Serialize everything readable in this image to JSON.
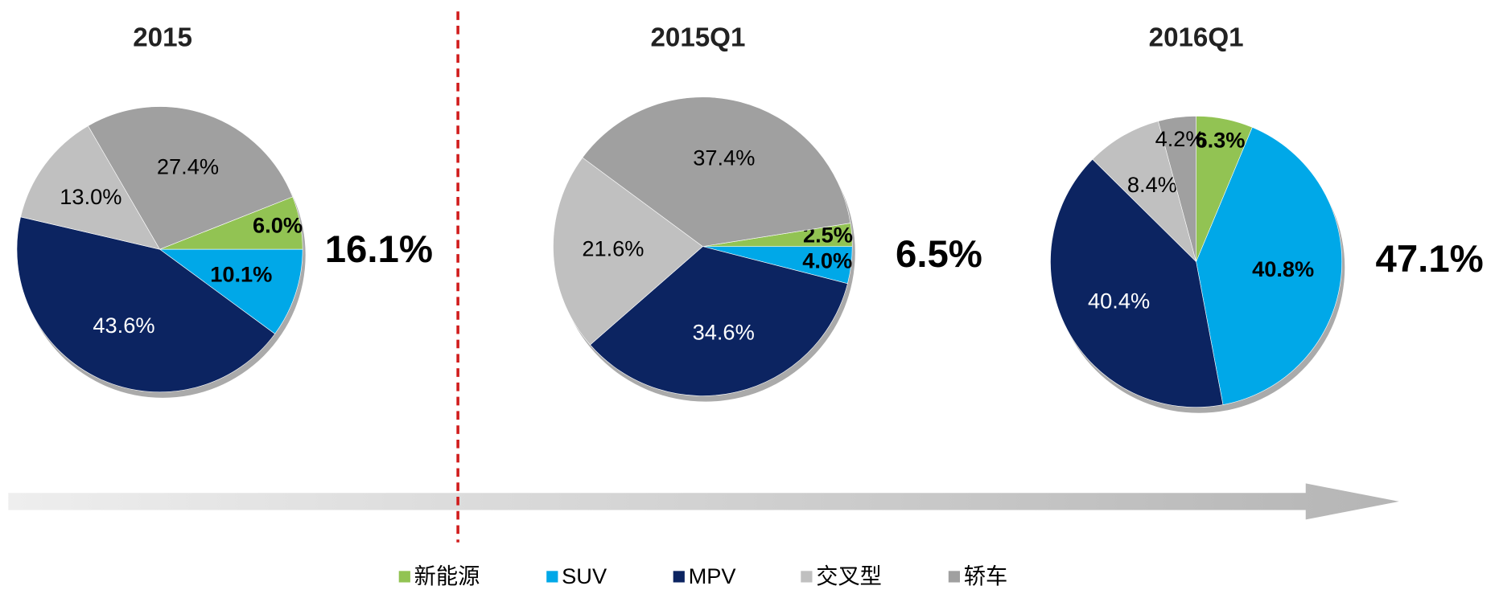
{
  "chart_data": [
    {
      "type": "pie",
      "title": "2015",
      "annotation": "16.1%",
      "categories": [
        "新能源",
        "SUV",
        "MPV",
        "交叉型",
        "轿车"
      ],
      "values": [
        6.0,
        10.1,
        43.6,
        13.0,
        27.4
      ],
      "value_labels": [
        "6.0%",
        "10.1%",
        "43.6%",
        "13.0%",
        "27.4%"
      ],
      "colors": [
        "#92c353",
        "#00a8e8",
        "#0c2461",
        "#c0c0c0",
        "#a0a0a0"
      ]
    },
    {
      "type": "pie",
      "title": "2015Q1",
      "annotation": "6.5%",
      "categories": [
        "新能源",
        "SUV",
        "MPV",
        "交叉型",
        "轿车"
      ],
      "values": [
        2.5,
        4.0,
        34.6,
        21.6,
        37.4
      ],
      "value_labels": [
        "2.5%",
        "4.0%",
        "34.6%",
        "21.6%",
        "37.4%"
      ],
      "colors": [
        "#92c353",
        "#00a8e8",
        "#0c2461",
        "#c0c0c0",
        "#a0a0a0"
      ]
    },
    {
      "type": "pie",
      "title": "2016Q1",
      "annotation": "47.1%",
      "categories": [
        "新能源",
        "SUV",
        "MPV",
        "交叉型",
        "轿车"
      ],
      "values": [
        6.3,
        40.8,
        40.4,
        8.4,
        4.2
      ],
      "value_labels": [
        "6.3%",
        "40.8%",
        "40.4%",
        "8.4%",
        "4.2%"
      ],
      "colors": [
        "#92c353",
        "#00a8e8",
        "#0c2461",
        "#c0c0c0",
        "#a0a0a0"
      ]
    }
  ]
}
